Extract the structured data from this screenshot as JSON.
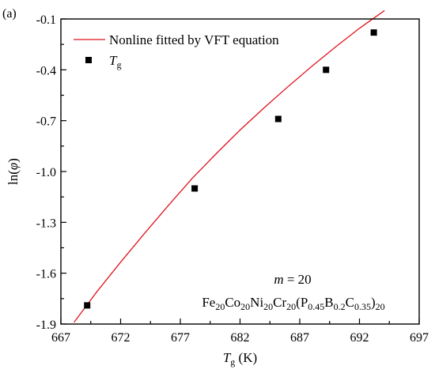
{
  "panel_label": "(a)",
  "chart_data": {
    "type": "scatter",
    "xlabel": {
      "main": "T",
      "sub": "g",
      "unit": " (K)"
    },
    "ylabel": {
      "main": "ln(",
      "greek": "φ",
      "close": ")"
    },
    "xlim": [
      667,
      697
    ],
    "ylim": [
      -1.9,
      -0.1
    ],
    "xticks": [
      667,
      672,
      677,
      682,
      687,
      692,
      697
    ],
    "yticks": [
      -1.9,
      -1.6,
      -1.3,
      -1.0,
      -0.7,
      -0.4,
      -0.1
    ],
    "ytick_labels": [
      "-1.9",
      "-1.6",
      "-1.3",
      "-1.0",
      "-0.7",
      "-0.4",
      "-0.1"
    ],
    "series": [
      {
        "name": "Tg",
        "legend": {
          "main": "T",
          "sub": "g"
        },
        "marker": "square",
        "color": "#000000",
        "x": [
          669.2,
          678.2,
          685.2,
          689.2,
          693.2
        ],
        "y": [
          -1.79,
          -1.1,
          -0.69,
          -0.4,
          -0.18
        ]
      },
      {
        "name": "Nonline fitted by VFT equation",
        "legend_label": "Nonline fitted by VFT equation",
        "type": "line",
        "color": "#e0141e",
        "x": [
          668.1,
          670,
          672,
          674,
          676,
          678,
          680,
          682,
          684,
          686,
          688,
          690,
          692,
          694.1
        ],
        "y": [
          -1.89,
          -1.71,
          -1.535,
          -1.365,
          -1.2,
          -1.04,
          -0.895,
          -0.755,
          -0.625,
          -0.5,
          -0.38,
          -0.265,
          -0.155,
          -0.05
        ]
      }
    ],
    "annotations": {
      "m_label": "m",
      "m_value": " = 20",
      "formula": [
        {
          "t": "Fe",
          "s": false
        },
        {
          "t": "20",
          "s": true
        },
        {
          "t": "Co",
          "s": false
        },
        {
          "t": "20",
          "s": true
        },
        {
          "t": "Ni",
          "s": false
        },
        {
          "t": "20",
          "s": true
        },
        {
          "t": "Cr",
          "s": false
        },
        {
          "t": "20",
          "s": true
        },
        {
          "t": "(P",
          "s": false
        },
        {
          "t": "0.45",
          "s": true
        },
        {
          "t": "B",
          "s": false
        },
        {
          "t": "0.2",
          "s": true
        },
        {
          "t": "C",
          "s": false
        },
        {
          "t": "0.35",
          "s": true
        },
        {
          "t": ")",
          "s": false
        },
        {
          "t": "20",
          "s": true
        }
      ]
    }
  }
}
